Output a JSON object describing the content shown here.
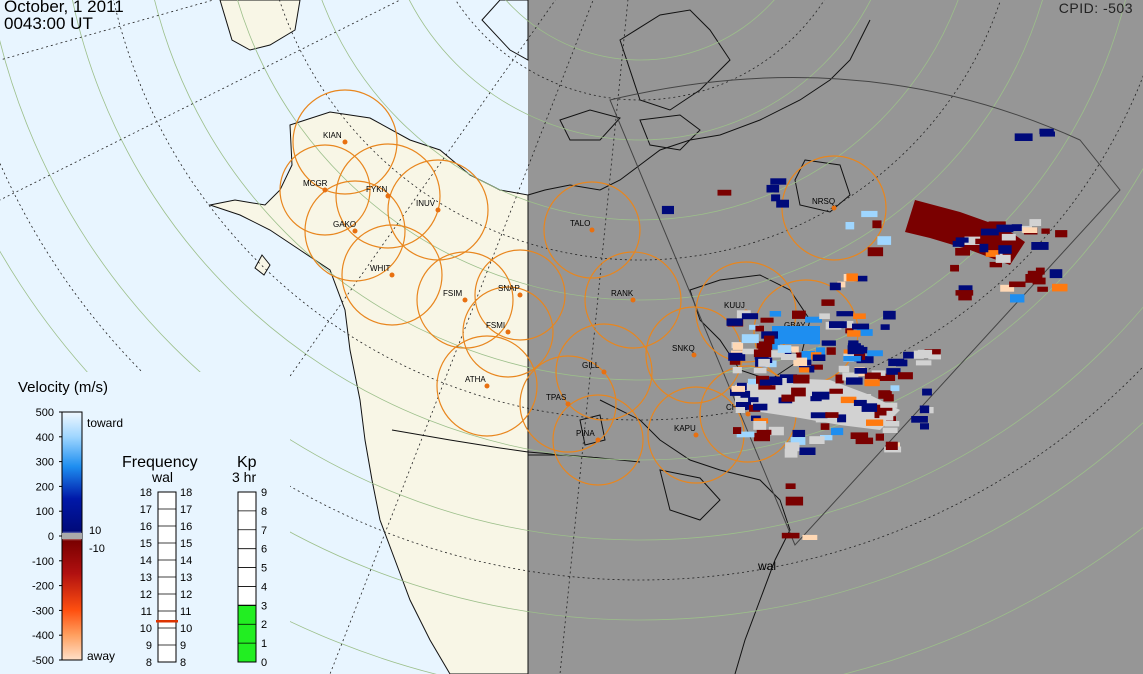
{
  "header": {
    "date": "October, 1 2011",
    "time": "0043:00 UT",
    "cpid": "CPID:  -503"
  },
  "colors": {
    "land": "#f8f6e6",
    "ocean": "#e8f5ff",
    "night": "#969696",
    "circle": "#e8861e",
    "station_dot": "#e87010",
    "toward_light": "#9fd6ff",
    "toward_mid": "#1e8ef0",
    "toward_dark": "#000a7a",
    "away_dark": "#7a0000",
    "away_mid": "#ff7a10",
    "away_light": "#ffd8b4",
    "ground_scatter": "#d2d2d2",
    "kp_fill": "#22ee22",
    "freq_marker": "#dd3300"
  },
  "stations": [
    {
      "code": "KIAN"
    },
    {
      "code": "MCGR"
    },
    {
      "code": "FYKN"
    },
    {
      "code": "INUV"
    },
    {
      "code": "GAKO"
    },
    {
      "code": "WHIT"
    },
    {
      "code": "FSIM"
    },
    {
      "code": "SNAP"
    },
    {
      "code": "FSMI"
    },
    {
      "code": "ATHA"
    },
    {
      "code": "TPAS"
    },
    {
      "code": "GILL"
    },
    {
      "code": "RANK"
    },
    {
      "code": "TALO"
    },
    {
      "code": "NRSQ"
    },
    {
      "code": "KUUJ"
    },
    {
      "code": "GBAY"
    },
    {
      "code": "SNKQ"
    },
    {
      "code": "CHBG"
    },
    {
      "code": "KAPU"
    },
    {
      "code": "PINA"
    }
  ],
  "radar_label": "wal",
  "velocity_scale": {
    "title": "Velocity (m/s)",
    "ticks": [
      "500",
      "400",
      "300",
      "200",
      "100",
      "0",
      "-100",
      "-200",
      "-300",
      "-400",
      "-500"
    ],
    "toward_label": "toward",
    "away_label": "away",
    "upper_threshold": "10",
    "lower_threshold": "-10"
  },
  "frequency": {
    "title": "Frequency",
    "radar": "wal",
    "ticks": [
      "18",
      "17",
      "16",
      "15",
      "14",
      "13",
      "12",
      "11",
      "10",
      "9",
      "8"
    ],
    "value_mhz": 10.4
  },
  "kp": {
    "title": "Kp",
    "subtitle": "3 hr",
    "ticks": [
      "9",
      "8",
      "7",
      "6",
      "5",
      "4",
      "3",
      "2",
      "1",
      "0"
    ],
    "value": 3
  }
}
